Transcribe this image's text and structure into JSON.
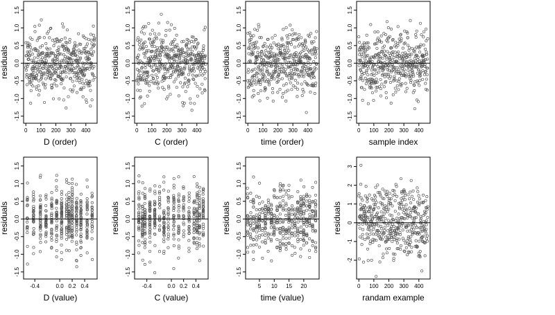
{
  "colors": {
    "points": "#555555",
    "frame": "#000000",
    "background": "#ffffff"
  },
  "chart_data": [
    {
      "type": "scatter",
      "xlabel": "D (order)",
      "ylabel": "residuals",
      "xlim": [
        -15,
        475
      ],
      "ylim": [
        -1.7,
        1.75
      ],
      "xticks": [
        0,
        100,
        200,
        300,
        400
      ],
      "yticks": [
        -1.5,
        -1.0,
        -0.5,
        0.0,
        0.5,
        1.0,
        1.5
      ],
      "xtick_labels": [
        "0",
        "100",
        "200",
        "300",
        "400"
      ],
      "ytick_labels": [
        "-1.5",
        "-1.0",
        "-0.5",
        "0.0",
        "0.5",
        "1.0",
        "1.5"
      ],
      "hline": 0,
      "n_points": 460,
      "x_positions": "index",
      "y_sd": 0.45,
      "seed": 11
    },
    {
      "type": "scatter",
      "xlabel": "C (order)",
      "ylabel": "residuals",
      "xlim": [
        -15,
        475
      ],
      "ylim": [
        -1.7,
        1.75
      ],
      "xticks": [
        0,
        100,
        200,
        300,
        400
      ],
      "yticks": [
        -1.5,
        -1.0,
        -0.5,
        0.0,
        0.5,
        1.0,
        1.5
      ],
      "xtick_labels": [
        "0",
        "100",
        "200",
        "300",
        "400"
      ],
      "ytick_labels": [
        "-1.5",
        "-1.0",
        "-0.5",
        "0.0",
        "0.5",
        "1.0",
        "1.5"
      ],
      "hline": 0,
      "n_points": 460,
      "x_positions": "index",
      "y_sd": 0.45,
      "seed": 23
    },
    {
      "type": "scatter",
      "xlabel": "time (order)",
      "ylabel": "residuals",
      "xlim": [
        -15,
        475
      ],
      "ylim": [
        -1.7,
        1.75
      ],
      "xticks": [
        0,
        100,
        200,
        300,
        400
      ],
      "yticks": [
        -1.5,
        -1.0,
        -0.5,
        0.0,
        0.5,
        1.0,
        1.5
      ],
      "xtick_labels": [
        "0",
        "100",
        "200",
        "300",
        "400"
      ],
      "ytick_labels": [
        "-1.5",
        "-1.0",
        "-0.5",
        "0.0",
        "0.5",
        "1.0",
        "1.5"
      ],
      "hline": 0,
      "n_points": 460,
      "x_positions": "index",
      "y_sd": 0.45,
      "seed": 37
    },
    {
      "type": "scatter",
      "xlabel": "sample index",
      "ylabel": "residuals",
      "xlim": [
        -15,
        475
      ],
      "ylim": [
        -1.7,
        1.75
      ],
      "xticks": [
        0,
        100,
        200,
        300,
        400
      ],
      "yticks": [
        -1.5,
        -1.0,
        -0.5,
        0.0,
        0.5,
        1.0,
        1.5
      ],
      "xtick_labels": [
        "0",
        "100",
        "200",
        "300",
        "400"
      ],
      "ytick_labels": [
        "-1.5",
        "-1.0",
        "-0.5",
        "0.0",
        "0.5",
        "1.0",
        "1.5"
      ],
      "hline": 0,
      "n_points": 460,
      "x_positions": "index",
      "y_sd": 0.45,
      "seed": 41
    },
    {
      "type": "scatter",
      "xlabel": "D (value)",
      "ylabel": "residuals",
      "xlim": [
        -0.58,
        0.6
      ],
      "ylim": [
        -1.7,
        1.75
      ],
      "xticks": [
        -0.4,
        0.0,
        0.2,
        0.4
      ],
      "yticks": [
        -1.5,
        -1.0,
        -0.5,
        0.0,
        0.5,
        1.0,
        1.5
      ],
      "xtick_labels": [
        "-0.4",
        "0.0",
        "0.2",
        "0.4"
      ],
      "ytick_labels": [
        "-1.5",
        "-1.0",
        "-0.5",
        "0.0",
        "0.5",
        "1.0",
        "1.5"
      ],
      "hline": 0,
      "n_points": 460,
      "y_sd": 0.45,
      "seed": 53,
      "x_levels": [
        -0.52,
        -0.42,
        -0.31,
        -0.22,
        -0.13,
        -0.05,
        0.03,
        0.11,
        0.15,
        0.2,
        0.27,
        0.34,
        0.44,
        0.52
      ]
    },
    {
      "type": "scatter",
      "xlabel": "C (value)",
      "ylabel": "residuals",
      "xlim": [
        -0.6,
        0.6
      ],
      "ylim": [
        -1.7,
        1.75
      ],
      "xticks": [
        -0.4,
        0.0,
        0.2,
        0.4
      ],
      "yticks": [
        -1.5,
        -1.0,
        -0.5,
        0.0,
        0.5,
        1.0,
        1.5
      ],
      "xtick_labels": [
        "-0.4",
        "0.0",
        "0.2",
        "0.4"
      ],
      "ytick_labels": [
        "-1.5",
        "-1.0",
        "-0.5",
        "0.0",
        "0.5",
        "1.0",
        "1.5"
      ],
      "hline": 0,
      "n_points": 460,
      "y_sd": 0.45,
      "seed": 67,
      "x_levels": [
        -0.53,
        -0.47,
        -0.43,
        -0.35,
        -0.27,
        -0.19,
        -0.12,
        -0.05,
        0.04,
        0.12,
        0.2,
        0.29,
        0.37,
        0.42,
        0.46,
        0.52
      ]
    },
    {
      "type": "scatter",
      "xlabel": "time (value)",
      "ylabel": "residuals",
      "xlim": [
        0.3,
        25.2
      ],
      "ylim": [
        -1.7,
        1.75
      ],
      "xticks": [
        5,
        10,
        15,
        20
      ],
      "yticks": [
        -1.5,
        -1.0,
        -0.5,
        0.0,
        0.5,
        1.0,
        1.5
      ],
      "xtick_labels": [
        "5",
        "10",
        "15",
        "20"
      ],
      "ytick_labels": [
        "-1.5",
        "-1.0",
        "-0.5",
        "0.0",
        "0.5",
        "1.0",
        "1.5"
      ],
      "hline": 0,
      "n_points": 460,
      "y_sd": 0.45,
      "seed": 79,
      "x_levels": [
        1,
        2,
        3,
        4,
        5,
        6,
        7,
        8,
        9,
        10,
        11,
        12,
        13,
        14,
        15,
        16,
        17,
        18,
        19,
        20,
        21,
        22,
        23,
        24
      ]
    },
    {
      "type": "scatter",
      "xlabel": "randam example",
      "ylabel": "residuals",
      "xlim": [
        -15,
        475
      ],
      "ylim": [
        -3.0,
        3.5
      ],
      "xticks": [
        0,
        100,
        200,
        300,
        400
      ],
      "yticks": [
        -2,
        -1,
        0,
        1,
        2,
        3
      ],
      "xtick_labels": [
        "0",
        "100",
        "200",
        "300",
        "400"
      ],
      "ytick_labels": [
        "-2",
        "-1",
        "0",
        "1",
        "2",
        "3"
      ],
      "hline": 0,
      "n_points": 460,
      "x_positions": "index",
      "y_sd": 1.0,
      "seed": 97
    }
  ]
}
